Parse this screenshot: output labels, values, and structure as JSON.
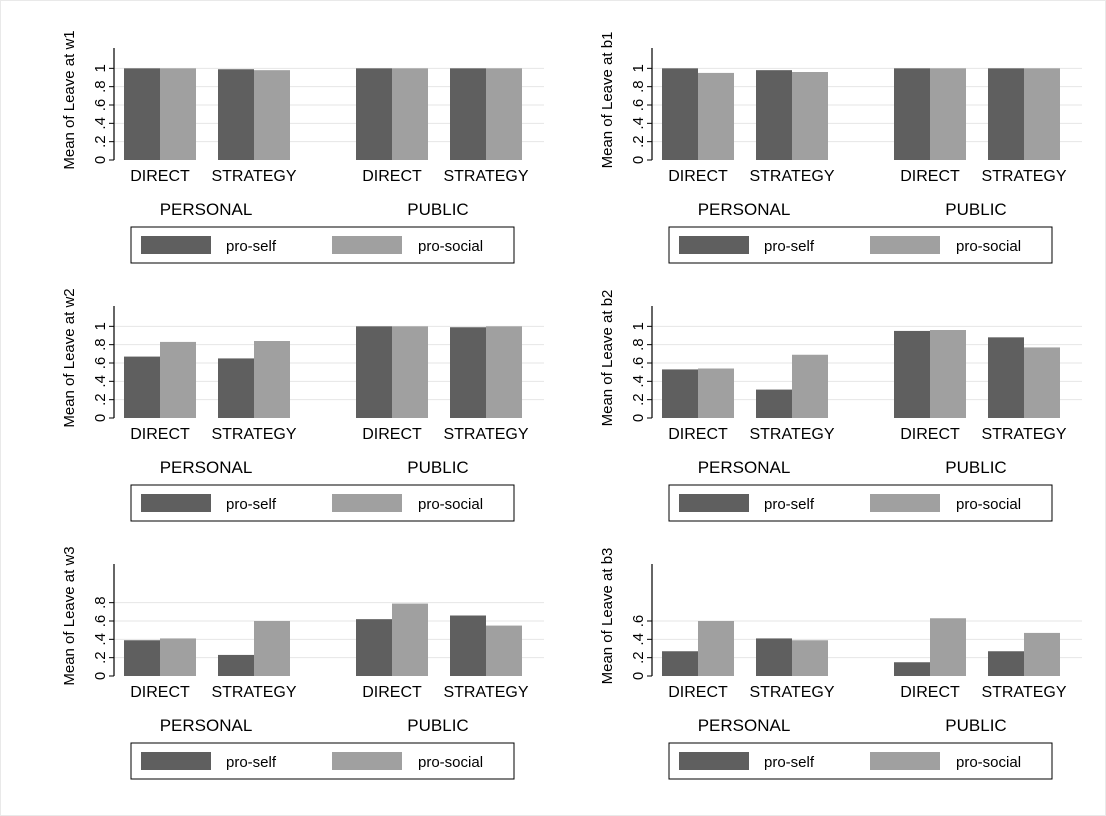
{
  "chart_data": [
    {
      "type": "bar",
      "ylabel": "Mean of Leave at w1",
      "ylim": [
        0,
        1.2
      ],
      "yticks": [
        "0",
        ".2",
        ".4",
        ".6",
        ".8",
        "1"
      ],
      "groups": [
        "PERSONAL",
        "PUBLIC"
      ],
      "categories": [
        "DIRECT",
        "STRATEGY"
      ],
      "series": [
        {
          "name": "pro-self",
          "color": "#5f5f5f",
          "values": [
            [
              1.0,
              0.99
            ],
            [
              1.0,
              1.0
            ]
          ]
        },
        {
          "name": "pro-social",
          "color": "#a0a0a0",
          "values": [
            [
              1.0,
              0.98
            ],
            [
              1.0,
              1.0
            ]
          ]
        }
      ],
      "legend": {
        "position": "bottom",
        "items": [
          "pro-self",
          "pro-social"
        ]
      }
    },
    {
      "type": "bar",
      "ylabel": "Mean of Leave at b1",
      "ylim": [
        0,
        1.2
      ],
      "yticks": [
        "0",
        ".2",
        ".4",
        ".6",
        ".8",
        "1"
      ],
      "groups": [
        "PERSONAL",
        "PUBLIC"
      ],
      "categories": [
        "DIRECT",
        "STRATEGY"
      ],
      "series": [
        {
          "name": "pro-self",
          "color": "#5f5f5f",
          "values": [
            [
              1.0,
              0.98
            ],
            [
              1.0,
              1.0
            ]
          ]
        },
        {
          "name": "pro-social",
          "color": "#a0a0a0",
          "values": [
            [
              0.95,
              0.96
            ],
            [
              1.0,
              1.0
            ]
          ]
        }
      ],
      "legend": {
        "position": "bottom",
        "items": [
          "pro-self",
          "pro-social"
        ]
      }
    },
    {
      "type": "bar",
      "ylabel": "Mean of Leave at w2",
      "ylim": [
        0,
        1.2
      ],
      "yticks": [
        "0",
        ".2",
        ".4",
        ".6",
        ".8",
        "1"
      ],
      "groups": [
        "PERSONAL",
        "PUBLIC"
      ],
      "categories": [
        "DIRECT",
        "STRATEGY"
      ],
      "series": [
        {
          "name": "pro-self",
          "color": "#5f5f5f",
          "values": [
            [
              0.67,
              0.65
            ],
            [
              1.0,
              0.99
            ]
          ]
        },
        {
          "name": "pro-social",
          "color": "#a0a0a0",
          "values": [
            [
              0.83,
              0.84
            ],
            [
              1.0,
              1.0
            ]
          ]
        }
      ],
      "legend": {
        "position": "bottom",
        "items": [
          "pro-self",
          "pro-social"
        ]
      }
    },
    {
      "type": "bar",
      "ylabel": "Mean of Leave at b2",
      "ylim": [
        0,
        1.2
      ],
      "yticks": [
        "0",
        ".2",
        ".4",
        ".6",
        ".8",
        "1"
      ],
      "groups": [
        "PERSONAL",
        "PUBLIC"
      ],
      "categories": [
        "DIRECT",
        "STRATEGY"
      ],
      "series": [
        {
          "name": "pro-self",
          "color": "#5f5f5f",
          "values": [
            [
              0.53,
              0.31
            ],
            [
              0.95,
              0.88
            ]
          ]
        },
        {
          "name": "pro-social",
          "color": "#a0a0a0",
          "values": [
            [
              0.54,
              0.69
            ],
            [
              0.96,
              0.77
            ]
          ]
        }
      ],
      "legend": {
        "position": "bottom",
        "items": [
          "pro-self",
          "pro-social"
        ]
      }
    },
    {
      "type": "bar",
      "ylabel": "Mean of Leave at w3",
      "ylim": [
        0,
        1.2
      ],
      "yticks": [
        "0",
        ".2",
        ".4",
        ".6",
        ".8"
      ],
      "groups": [
        "PERSONAL",
        "PUBLIC"
      ],
      "categories": [
        "DIRECT",
        "STRATEGY"
      ],
      "series": [
        {
          "name": "pro-self",
          "color": "#5f5f5f",
          "values": [
            [
              0.39,
              0.23
            ],
            [
              0.62,
              0.66
            ]
          ]
        },
        {
          "name": "pro-social",
          "color": "#a0a0a0",
          "values": [
            [
              0.41,
              0.6
            ],
            [
              0.79,
              0.55
            ]
          ]
        }
      ],
      "legend": {
        "position": "bottom",
        "items": [
          "pro-self",
          "pro-social"
        ]
      }
    },
    {
      "type": "bar",
      "ylabel": "Mean of Leave at b3",
      "ylim": [
        0,
        1.2
      ],
      "yticks": [
        "0",
        ".2",
        ".4",
        ".6"
      ],
      "groups": [
        "PERSONAL",
        "PUBLIC"
      ],
      "categories": [
        "DIRECT",
        "STRATEGY"
      ],
      "series": [
        {
          "name": "pro-self",
          "color": "#5f5f5f",
          "values": [
            [
              0.27,
              0.41
            ],
            [
              0.15,
              0.27
            ]
          ]
        },
        {
          "name": "pro-social",
          "color": "#a0a0a0",
          "values": [
            [
              0.6,
              0.39
            ],
            [
              0.63,
              0.47
            ]
          ]
        }
      ],
      "legend": {
        "position": "bottom",
        "items": [
          "pro-self",
          "pro-social"
        ]
      }
    }
  ]
}
